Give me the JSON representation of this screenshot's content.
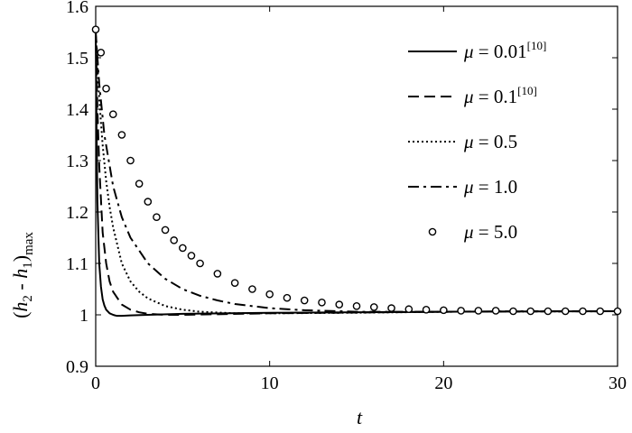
{
  "chart_data": {
    "type": "line",
    "title": "",
    "xlabel": "t",
    "ylabel_parts": {
      "open": "(",
      "h2": "h",
      "h2_sub": "2",
      "minus": " - ",
      "h1": "h",
      "h1_sub": "1",
      "close": ")",
      "sub": "max"
    },
    "xlim": [
      0,
      30
    ],
    "ylim": [
      0.9,
      1.6
    ],
    "xticks": [
      0,
      10,
      20,
      30
    ],
    "xtick_labels": [
      "0",
      "10",
      "20",
      "30"
    ],
    "yticks": [
      0.9,
      1.0,
      1.1,
      1.2,
      1.3,
      1.4,
      1.5,
      1.6
    ],
    "ytick_labels": [
      "0.9",
      "1",
      "1.1",
      "1.2",
      "1.3",
      "1.4",
      "1.5",
      "1.6"
    ],
    "grid": false,
    "legend_position": "top-right",
    "series": [
      {
        "name": "μ = 0.01",
        "mu_symbol": "μ",
        "value_text": " = 0.01",
        "sup": "[10]",
        "style": "solid",
        "x": [
          0,
          0.05,
          0.1,
          0.2,
          0.3,
          0.4,
          0.5,
          0.6,
          0.8,
          1.0,
          1.2,
          1.5,
          2.0,
          3.0,
          5.0,
          10.0,
          20.0,
          30.0
        ],
        "y": [
          1.55,
          1.35,
          1.22,
          1.1,
          1.055,
          1.03,
          1.018,
          1.01,
          1.003,
          1.0,
          0.998,
          0.998,
          0.999,
          1.0,
          1.002,
          1.004,
          1.006,
          1.007
        ]
      },
      {
        "name": "μ = 0.1",
        "mu_symbol": "μ",
        "value_text": " = 0.1",
        "sup": "[10]",
        "style": "dashed",
        "x": [
          0,
          0.1,
          0.2,
          0.4,
          0.6,
          0.8,
          1.0,
          1.5,
          2.0,
          2.5,
          3.0,
          4.0,
          5.0,
          10.0,
          20.0,
          30.0
        ],
        "y": [
          1.55,
          1.4,
          1.29,
          1.16,
          1.1,
          1.065,
          1.045,
          1.02,
          1.01,
          1.005,
          1.002,
          1.0,
          1.0,
          1.003,
          1.006,
          1.007
        ]
      },
      {
        "name": "μ = 0.5",
        "mu_symbol": "μ",
        "value_text": " = 0.5",
        "sup": "",
        "style": "dotted",
        "x": [
          0,
          0.2,
          0.4,
          0.6,
          0.8,
          1.0,
          1.5,
          2.0,
          2.5,
          3.0,
          4.0,
          5.0,
          6.0,
          8.0,
          10.0,
          15.0,
          20.0,
          30.0
        ],
        "y": [
          1.55,
          1.42,
          1.33,
          1.26,
          1.21,
          1.17,
          1.1,
          1.065,
          1.045,
          1.032,
          1.017,
          1.01,
          1.006,
          1.003,
          1.003,
          1.004,
          1.006,
          1.007
        ]
      },
      {
        "name": "μ = 1.0",
        "mu_symbol": "μ",
        "value_text": " = 1.0",
        "sup": "",
        "style": "dashdot",
        "x": [
          0,
          0.2,
          0.5,
          1.0,
          1.5,
          2.0,
          3.0,
          4.0,
          5.0,
          6.0,
          7.0,
          8.0,
          10.0,
          12.0,
          15.0,
          20.0,
          25.0,
          30.0
        ],
        "y": [
          1.55,
          1.45,
          1.35,
          1.25,
          1.19,
          1.15,
          1.1,
          1.07,
          1.05,
          1.037,
          1.028,
          1.021,
          1.013,
          1.009,
          1.006,
          1.006,
          1.007,
          1.007
        ]
      },
      {
        "name": "μ = 5.0",
        "mu_symbol": "μ",
        "value_text": " = 5.0",
        "sup": "",
        "style": "circles",
        "x": [
          0,
          0.3,
          0.6,
          1.0,
          1.5,
          2.0,
          2.5,
          3.0,
          3.5,
          4.0,
          4.5,
          5.0,
          5.5,
          6.0,
          7.0,
          8.0,
          9.0,
          10.0,
          11.0,
          12.0,
          13.0,
          14.0,
          15.0,
          16.0,
          17.0,
          18.0,
          19.0,
          20.0,
          21.0,
          22.0,
          23.0,
          24.0,
          25.0,
          26.0,
          27.0,
          28.0,
          29.0,
          30.0
        ],
        "y": [
          1.555,
          1.51,
          1.44,
          1.39,
          1.35,
          1.3,
          1.255,
          1.22,
          1.19,
          1.165,
          1.145,
          1.13,
          1.115,
          1.1,
          1.08,
          1.062,
          1.05,
          1.04,
          1.033,
          1.028,
          1.024,
          1.02,
          1.017,
          1.015,
          1.013,
          1.011,
          1.01,
          1.009,
          1.008,
          1.008,
          1.008,
          1.007,
          1.007,
          1.007,
          1.007,
          1.007,
          1.007,
          1.007
        ]
      }
    ]
  }
}
